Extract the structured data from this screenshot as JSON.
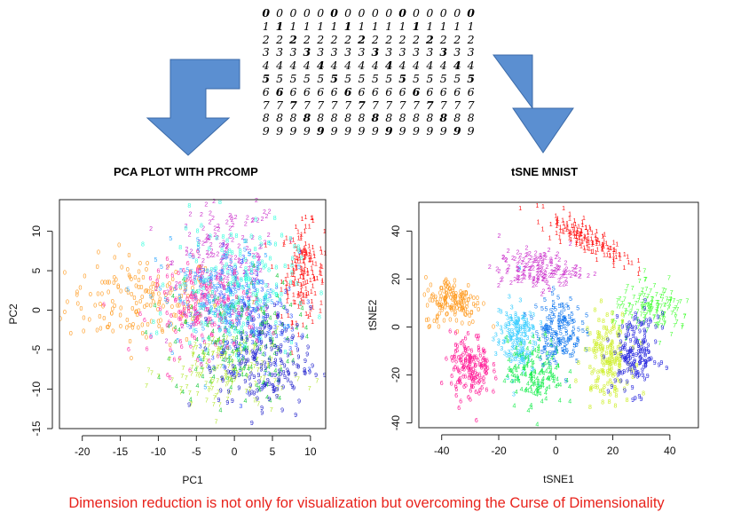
{
  "headings": {
    "left": "PCA PLOT WITH PRCOMP",
    "right": "tSNE MNIST"
  },
  "caption": "Dimension reduction is not only for visualization but overcoming the Curse of Dimensionality",
  "digit_rows": [
    [
      "0",
      "0",
      "0",
      "0",
      "0",
      "0",
      "0",
      "0",
      "0",
      "0",
      "0",
      "0",
      "0",
      "0",
      "0",
      "0"
    ],
    [
      "1",
      "1",
      "1",
      "1",
      "1",
      "1",
      "1",
      "1",
      "1",
      "1",
      "1",
      "1",
      "1",
      "1",
      "1",
      "1"
    ],
    [
      "2",
      "2",
      "2",
      "2",
      "2",
      "2",
      "2",
      "2",
      "2",
      "2",
      "2",
      "2",
      "2",
      "2",
      "2",
      "2"
    ],
    [
      "3",
      "3",
      "3",
      "3",
      "3",
      "3",
      "3",
      "3",
      "3",
      "3",
      "3",
      "3",
      "3",
      "3",
      "3",
      "3"
    ],
    [
      "4",
      "4",
      "4",
      "4",
      "4",
      "4",
      "4",
      "4",
      "4",
      "4",
      "4",
      "4",
      "4",
      "4",
      "4",
      "4"
    ],
    [
      "5",
      "5",
      "5",
      "5",
      "5",
      "5",
      "5",
      "5",
      "5",
      "5",
      "5",
      "5",
      "5",
      "5",
      "5",
      "5"
    ],
    [
      "6",
      "6",
      "6",
      "6",
      "6",
      "6",
      "6",
      "6",
      "6",
      "6",
      "6",
      "6",
      "6",
      "6",
      "6",
      "6"
    ],
    [
      "7",
      "7",
      "7",
      "7",
      "7",
      "7",
      "7",
      "7",
      "7",
      "7",
      "7",
      "7",
      "7",
      "7",
      "7",
      "7"
    ],
    [
      "8",
      "8",
      "8",
      "8",
      "8",
      "8",
      "8",
      "8",
      "8",
      "8",
      "8",
      "8",
      "8",
      "8",
      "8",
      "8"
    ],
    [
      "9",
      "9",
      "9",
      "9",
      "9",
      "9",
      "9",
      "9",
      "9",
      "9",
      "9",
      "9",
      "9",
      "9",
      "9",
      "9"
    ]
  ],
  "arrow_color": "#5b8fd1",
  "chart_data": [
    {
      "type": "scatter",
      "title": "",
      "xlabel": "PC1",
      "ylabel": "PC2",
      "xlim": [
        -23,
        12
      ],
      "ylim": [
        -15,
        14
      ],
      "x_ticks": [
        "-20",
        "-15",
        "-10",
        "-5",
        "0",
        "5",
        "10"
      ],
      "y_ticks": [
        "-15",
        "-10",
        "-5",
        "0",
        "5",
        "10"
      ],
      "grid": false,
      "clusters": [
        {
          "label": "0",
          "color": "#ff9a1f",
          "x": -12,
          "y": 1,
          "sx": 5,
          "sy": 2.8
        },
        {
          "label": "1",
          "color": "#ff1010",
          "x": 9,
          "y": 4.5,
          "sx": 1.4,
          "sy": 3
        },
        {
          "label": "2",
          "color": "#cc33cc",
          "x": -1,
          "y": 6,
          "sx": 3.5,
          "sy": 4
        },
        {
          "label": "3",
          "color": "#3355ff",
          "x": 1.5,
          "y": -1,
          "sx": 3.5,
          "sy": 4
        },
        {
          "label": "4",
          "color": "#22cc44",
          "x": 0,
          "y": -4,
          "sx": 4,
          "sy": 4
        },
        {
          "label": "5",
          "color": "#33aaff",
          "x": -2,
          "y": 1,
          "sx": 4,
          "sy": 3.5
        },
        {
          "label": "6",
          "color": "#ff33aa",
          "x": -4,
          "y": 0,
          "sx": 3.5,
          "sy": 3
        },
        {
          "label": "7",
          "color": "#b3e62e",
          "x": -1,
          "y": -8,
          "sx": 4,
          "sy": 3
        },
        {
          "label": "8",
          "color": "#33ffdd",
          "x": 0,
          "y": 3,
          "sx": 4,
          "sy": 4
        },
        {
          "label": "9",
          "color": "#2020cc",
          "x": 4,
          "y": -7,
          "sx": 3,
          "sy": 3.5
        }
      ]
    },
    {
      "type": "scatter",
      "title": "",
      "xlabel": "tSNE1",
      "ylabel": "tSNE2",
      "xlim": [
        -48,
        50
      ],
      "ylim": [
        -42,
        52
      ],
      "x_ticks": [
        "-40",
        "-20",
        "0",
        "20",
        "40"
      ],
      "y_ticks": [
        "-40",
        "-20",
        "0",
        "20",
        "40"
      ],
      "grid": false,
      "clusters": [
        {
          "label": "0",
          "color": "#ff9a1f",
          "x": -36,
          "y": 10,
          "sx": 5,
          "sy": 5
        },
        {
          "label": "1",
          "color": "#ff1010",
          "x": 10,
          "y": 37,
          "sx": 9,
          "sy": 2.5,
          "angle": -35
        },
        {
          "label": "2",
          "color": "#cc33cc",
          "x": -6,
          "y": 23,
          "sx": 7,
          "sy": 4
        },
        {
          "label": "3",
          "color": "#33ccff",
          "x": -14,
          "y": -5,
          "sx": 3.5,
          "sy": 8
        },
        {
          "label": "4",
          "color": "#22ee55",
          "x": -7,
          "y": -20,
          "sx": 5,
          "sy": 7
        },
        {
          "label": "5",
          "color": "#1177ee",
          "x": 1,
          "y": -2,
          "sx": 4,
          "sy": 7
        },
        {
          "label": "6",
          "color": "#ff1493",
          "x": -30,
          "y": -18,
          "sx": 3.5,
          "sy": 7
        },
        {
          "label": "7",
          "color": "#44ff33",
          "x": 34,
          "y": 6,
          "sx": 7,
          "sy": 5
        },
        {
          "label": "8",
          "color": "#ccee22",
          "x": 18,
          "y": -13,
          "sx": 4,
          "sy": 9
        },
        {
          "label": "9",
          "color": "#2222dd",
          "x": 28,
          "y": -12,
          "sx": 4,
          "sy": 8
        }
      ]
    }
  ]
}
